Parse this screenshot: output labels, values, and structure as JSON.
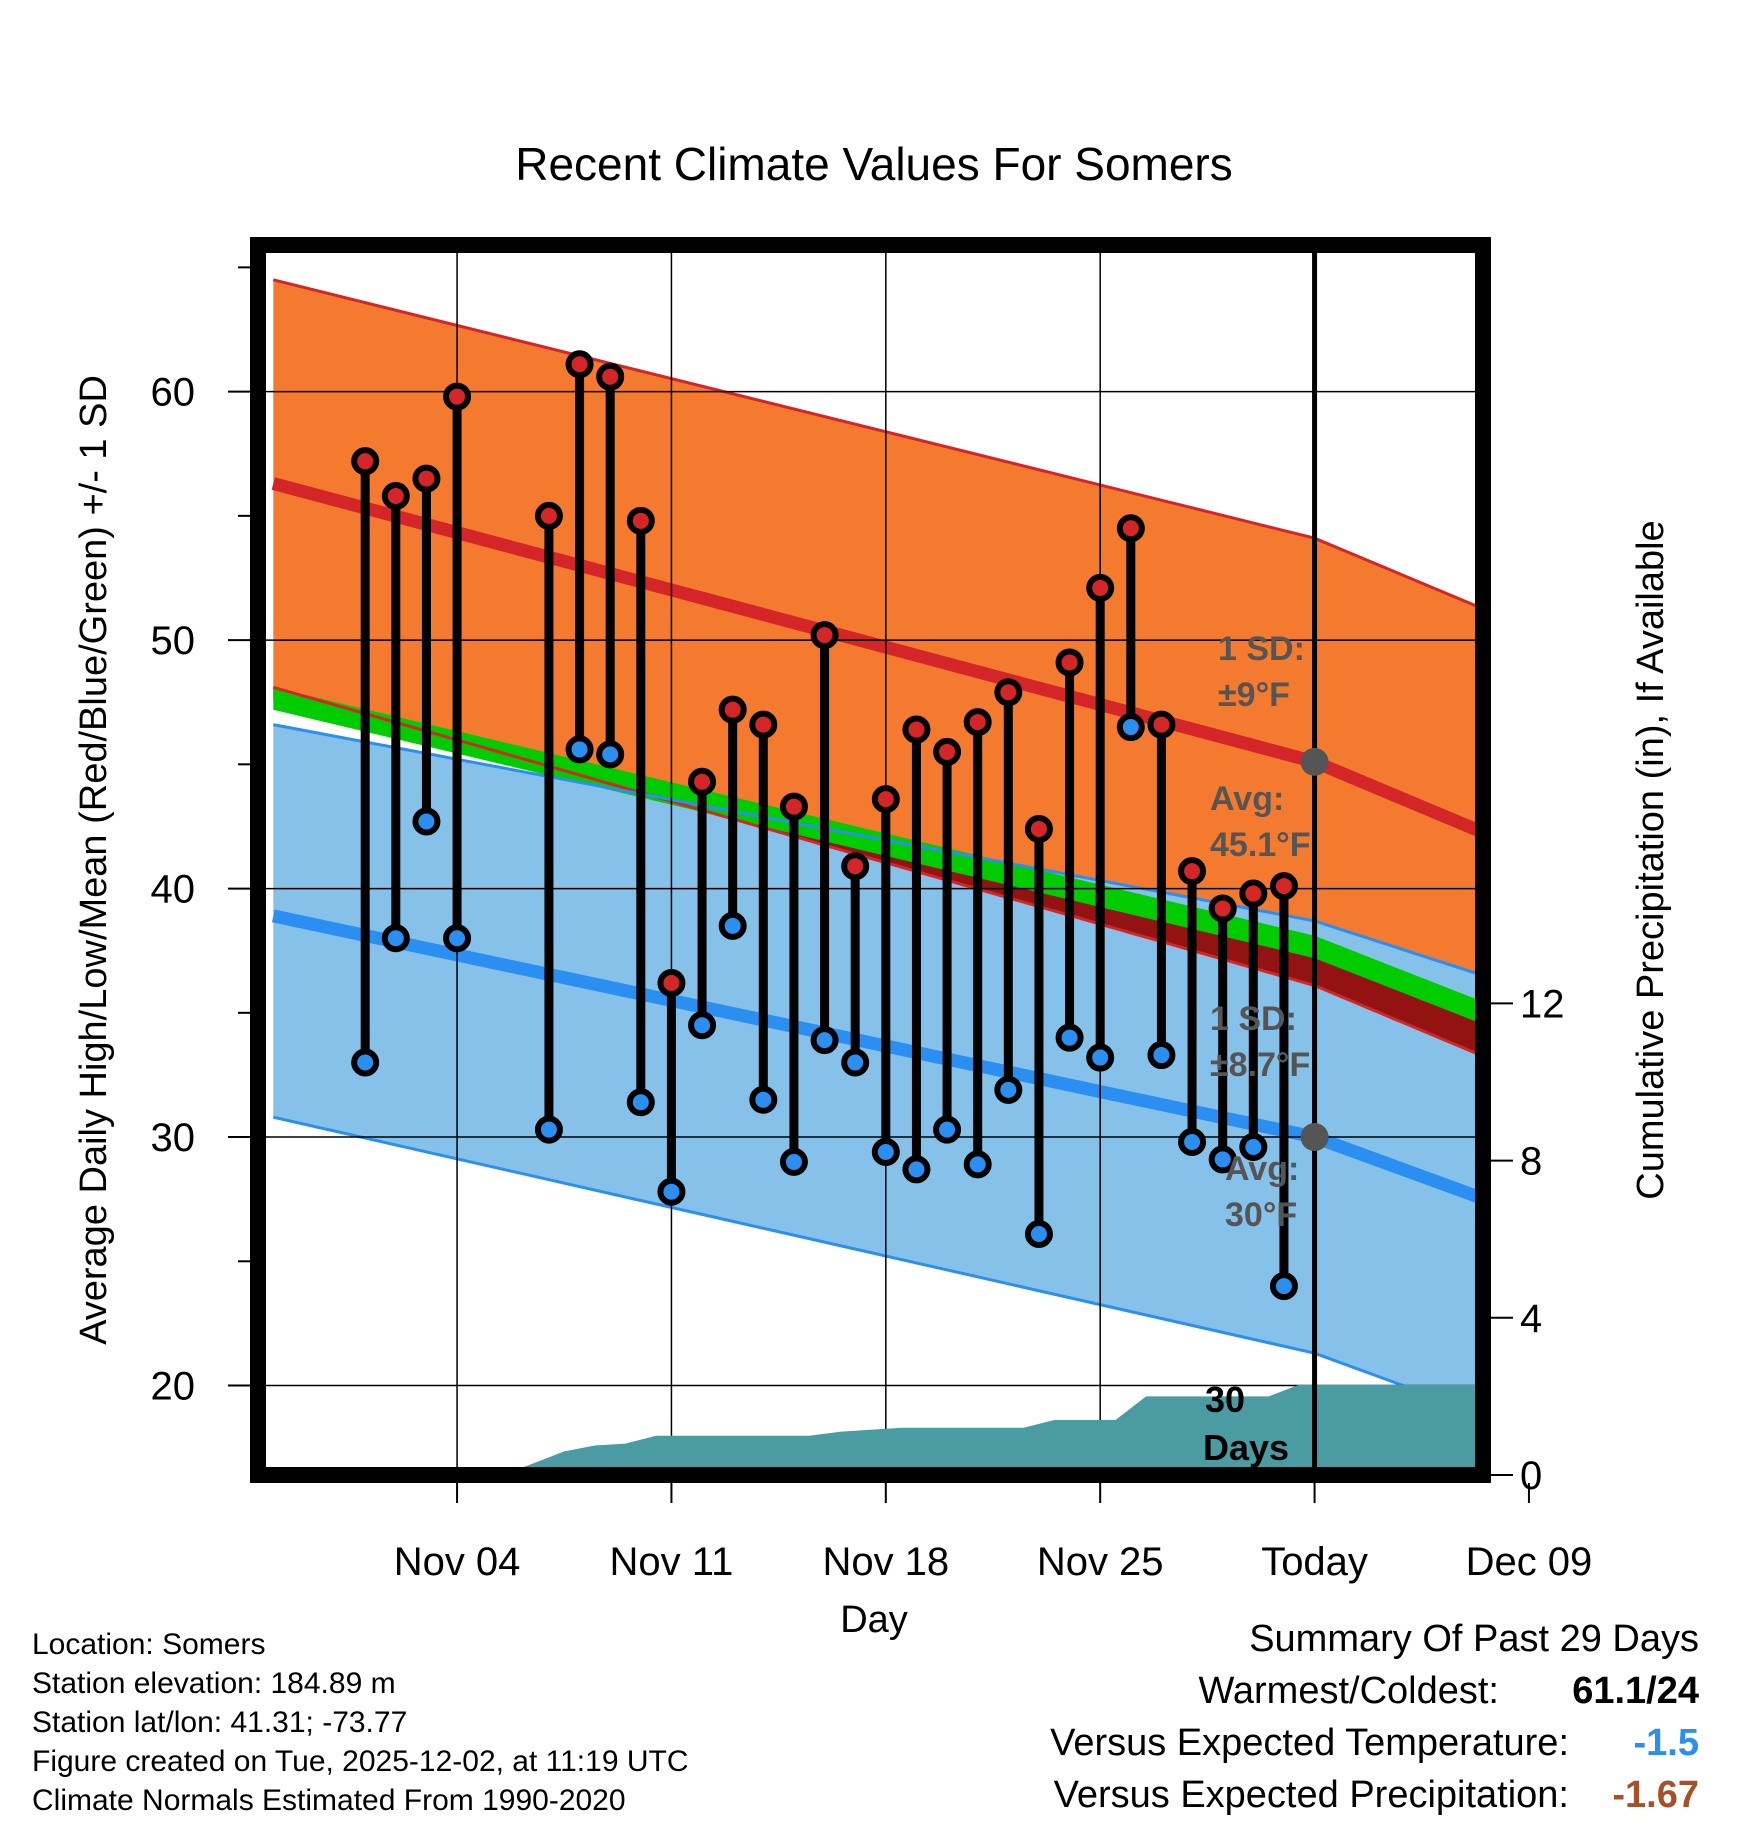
{
  "chart_data": {
    "type": "line",
    "title": "Recent Climate Values For Somers",
    "xlabel": "Day",
    "ylabel": "Average Daily High/Low/Mean (Red/Blue/Green) +/- 1 SD",
    "y2label": "Cumulative Precipitation (in), If Available",
    "ylim": [
      16.4,
      65.9
    ],
    "y2lim": [
      0,
      31.3
    ],
    "y_ticks": [
      20,
      30,
      40,
      50,
      60
    ],
    "y2_ticks": [
      0,
      4,
      8,
      12
    ],
    "x_range_day_offsets": [
      -3.5,
      36.5
    ],
    "x_ticks": [
      {
        "label": "Nov 04",
        "day_offset": 3
      },
      {
        "label": "Nov 11",
        "day_offset": 10
      },
      {
        "label": "Nov 18",
        "day_offset": 17
      },
      {
        "label": "Nov 25",
        "day_offset": 24
      },
      {
        "label": "Today",
        "day_offset": 31
      },
      {
        "label": "Dec 09",
        "day_offset": 38
      }
    ],
    "today_offset": 31,
    "normals": {
      "x": [
        -3,
        31,
        37
      ],
      "high_avg": [
        56.3,
        45.1,
        42.0
      ],
      "high_upper": [
        64.5,
        54.1,
        51.0
      ],
      "high_lower": [
        48.1,
        36.1,
        33.0
      ],
      "low_avg": [
        38.9,
        30.0,
        27.3
      ],
      "low_upper": [
        46.6,
        38.7,
        36.3
      ],
      "low_lower": [
        30.8,
        21.3,
        18.6
      ],
      "mean_avg": [
        47.6,
        37.6,
        34.7
      ]
    },
    "observations": {
      "day_offset": [
        0,
        1,
        2,
        3,
        6,
        7,
        8,
        9,
        10,
        11,
        12,
        13,
        14,
        15,
        16,
        17,
        18,
        19,
        20,
        21,
        22,
        23,
        24,
        25,
        26,
        27,
        28,
        29,
        30
      ],
      "high": [
        57.2,
        55.8,
        56.5,
        59.8,
        55.0,
        61.1,
        60.6,
        54.8,
        36.2,
        44.3,
        47.2,
        46.6,
        43.3,
        50.2,
        40.9,
        43.6,
        46.4,
        45.5,
        46.7,
        47.9,
        42.4,
        49.1,
        52.1,
        54.5,
        46.6,
        40.7,
        39.2,
        39.8,
        40.1
      ],
      "low": [
        33.0,
        38.0,
        42.7,
        38.0,
        30.3,
        45.6,
        45.4,
        31.4,
        27.8,
        34.5,
        38.5,
        31.5,
        29.0,
        33.9,
        33.0,
        29.4,
        28.7,
        30.3,
        28.9,
        31.9,
        26.1,
        34.0,
        33.2,
        46.5,
        33.3,
        29.8,
        29.1,
        29.6,
        24.0
      ]
    },
    "precipitation": {
      "day_offset": [
        -3.5,
        2.5,
        4.5,
        5.5,
        6.5,
        7.5,
        8.5,
        9.5,
        11.5,
        13.5,
        14.5,
        15.5,
        17.5,
        20.5,
        21.5,
        22.5,
        23.5,
        24.5,
        25.5,
        26.5,
        27.5,
        28.5,
        29.5,
        30.5,
        31,
        36.5
      ],
      "cumulative_in": [
        0,
        0,
        0,
        0.3,
        0.6,
        0.75,
        0.8,
        1.0,
        1.0,
        1.0,
        1.0,
        1.1,
        1.2,
        1.2,
        1.2,
        1.4,
        1.4,
        1.4,
        2.0,
        2.0,
        2.0,
        2.0,
        2.0,
        2.3,
        2.3,
        2.3
      ]
    },
    "annotations": {
      "high_sd_title": "1 SD:",
      "high_sd_value": "±9°F",
      "high_avg_title": "Avg:",
      "high_avg_value": "45.1°F",
      "low_sd_title": "1 SD:",
      "low_sd_value": "±8.7°F",
      "low_avg_title": "Avg:",
      "low_avg_value": "30°F",
      "days_count": "30",
      "days_word": "Days"
    }
  },
  "footer": {
    "location": "Location: Somers",
    "elevation": "Station elevation: 184.89 m",
    "latlon": "Station lat/lon: 41.31; -73.77",
    "created": "Figure created on Tue, 2025-12-02, at 11:19 UTC",
    "normals": "Climate Normals Estimated From 1990-2020"
  },
  "summary": {
    "title": "Summary Of Past 29 Days",
    "warm_cold_label": "Warmest/Coldest:",
    "warm_cold_value": "61.1/24",
    "temp_label": "Versus Expected Temperature:",
    "temp_value": "-1.5",
    "precip_label": "Versus Expected Precipitation:",
    "precip_value": "-1.67"
  },
  "colors": {
    "high_band": "#f47a30",
    "high_line": "#d42628",
    "low_band": "#85c1e8",
    "low_line": "#2a8ff0",
    "mean_band": "#00cc00",
    "deficit_band": "#931313",
    "precip": "#4a9ba2",
    "high_dot": "#d42628",
    "low_dot": "#2a8ff0",
    "temp_value": "#2a8ff0",
    "precip_value": "#a5512a"
  }
}
